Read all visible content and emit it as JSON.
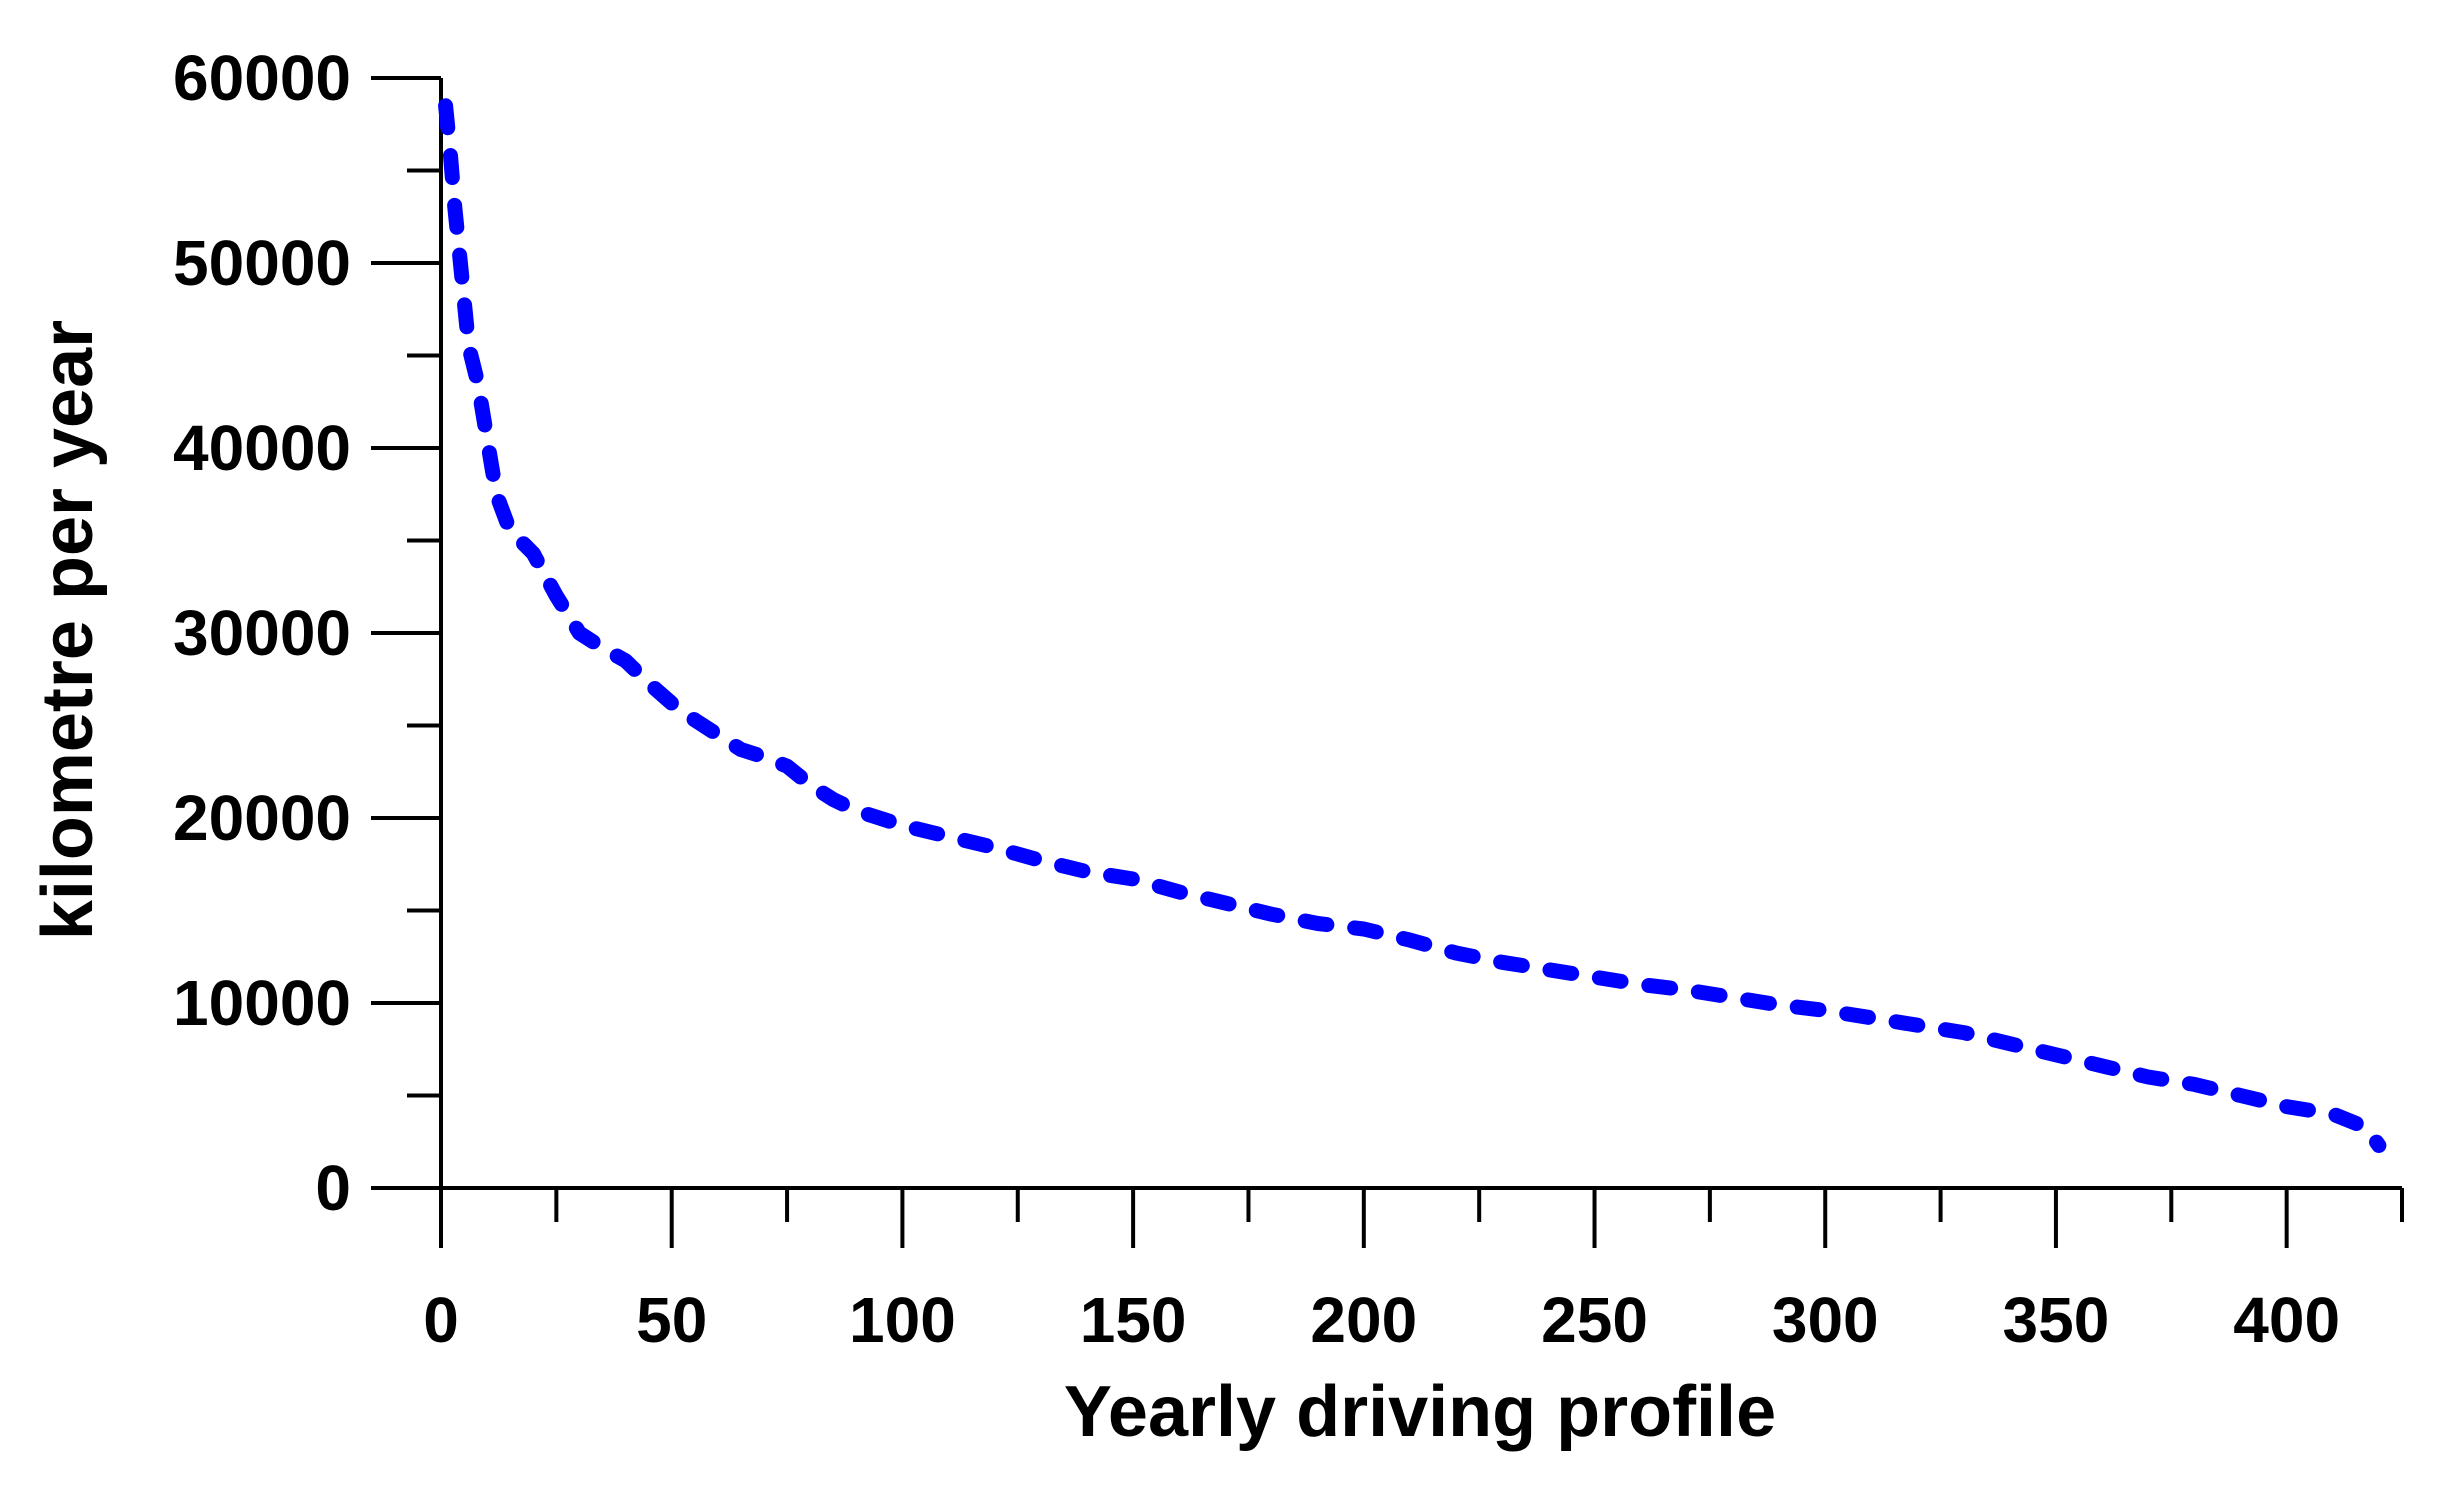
{
  "chart_data": {
    "type": "line",
    "title": "",
    "xlabel": "Yearly driving profile",
    "ylabel": "kilometre per year",
    "xlim": [
      0,
      425
    ],
    "ylim": [
      0,
      60000
    ],
    "x_ticks": [
      0,
      50,
      100,
      150,
      200,
      250,
      300,
      350,
      400
    ],
    "x_tick_labels": [
      "0",
      "50",
      "100",
      "150",
      "200",
      "250",
      "300",
      "350",
      "400"
    ],
    "x_minor_ticks": [
      25,
      75,
      125,
      175,
      225,
      275,
      325,
      375,
      425
    ],
    "y_ticks": [
      0,
      10000,
      20000,
      30000,
      40000,
      50000,
      60000
    ],
    "y_tick_labels": [
      "0",
      "10000",
      "20000",
      "30000",
      "40000",
      "50000",
      "60000"
    ],
    "y_minor_ticks": [
      5000,
      15000,
      25000,
      35000,
      45000,
      55000
    ],
    "grid": false,
    "line_style": "dotted",
    "colors": {
      "series": "#0000ff",
      "axis": "#000000"
    },
    "series": [
      {
        "name": "kilometre per year",
        "x": [
          1,
          2,
          3,
          4,
          5,
          6,
          8,
          10,
          12,
          15,
          18,
          20,
          25,
          30,
          35,
          40,
          45,
          50,
          55,
          60,
          65,
          70,
          75,
          80,
          85,
          90,
          95,
          100,
          110,
          120,
          130,
          140,
          150,
          160,
          170,
          180,
          190,
          200,
          210,
          220,
          230,
          240,
          250,
          260,
          270,
          280,
          290,
          300,
          310,
          320,
          330,
          340,
          350,
          360,
          370,
          380,
          390,
          400,
          405,
          410,
          415,
          418,
          420
        ],
        "values": [
          58500,
          56000,
          53000,
          50500,
          48000,
          45500,
          43500,
          40500,
          37500,
          35500,
          34800,
          34300,
          32000,
          30000,
          29200,
          28500,
          27300,
          26200,
          25300,
          24500,
          23700,
          23300,
          22800,
          21800,
          21000,
          20400,
          20000,
          19600,
          19000,
          18400,
          17700,
          17100,
          16700,
          16000,
          15400,
          14800,
          14300,
          14000,
          13400,
          12700,
          12200,
          11800,
          11400,
          11000,
          10700,
          10300,
          9900,
          9600,
          9200,
          8800,
          8400,
          7800,
          7200,
          6600,
          6000,
          5600,
          5000,
          4400,
          4200,
          4000,
          3500,
          3000,
          2300
        ]
      }
    ]
  }
}
